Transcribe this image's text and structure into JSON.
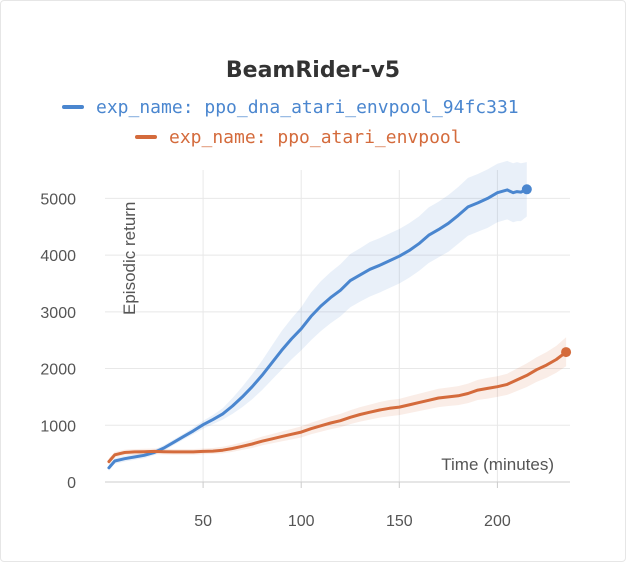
{
  "chart_data": {
    "type": "line",
    "title": "BeamRider-v5",
    "xlabel": "Time (minutes)",
    "ylabel": "Episodic return",
    "xlim": [
      0,
      237
    ],
    "ylim": [
      0,
      5500
    ],
    "xticks": [
      50,
      100,
      150,
      200
    ],
    "yticks": [
      0,
      1000,
      2000,
      3000,
      4000,
      5000
    ],
    "grid": true,
    "legend_position": "top",
    "series": [
      {
        "name": "exp_name: ppo_dna_atari_envpool_94fc331",
        "color": "#4a86cf",
        "x": [
          2,
          5,
          10,
          15,
          20,
          25,
          30,
          35,
          40,
          45,
          50,
          55,
          60,
          65,
          70,
          75,
          80,
          85,
          90,
          95,
          100,
          105,
          110,
          115,
          120,
          125,
          130,
          135,
          140,
          145,
          150,
          155,
          160,
          165,
          170,
          175,
          180,
          185,
          190,
          195,
          200,
          205,
          208,
          210,
          212,
          215
        ],
        "y": [
          250,
          370,
          410,
          440,
          470,
          520,
          600,
          700,
          800,
          900,
          1010,
          1100,
          1200,
          1340,
          1500,
          1680,
          1880,
          2100,
          2320,
          2520,
          2700,
          2920,
          3100,
          3250,
          3380,
          3550,
          3650,
          3750,
          3820,
          3900,
          3980,
          4080,
          4200,
          4350,
          4450,
          4560,
          4700,
          4850,
          4920,
          5000,
          5100,
          5150,
          5100,
          5120,
          5110,
          5160
        ],
        "lower": [
          200,
          320,
          360,
          390,
          420,
          470,
          550,
          650,
          750,
          840,
          940,
          1020,
          1100,
          1200,
          1320,
          1460,
          1620,
          1800,
          1980,
          2160,
          2320,
          2500,
          2660,
          2800,
          2920,
          3080,
          3180,
          3270,
          3340,
          3420,
          3500,
          3600,
          3720,
          3860,
          3960,
          4060,
          4200,
          4340,
          4410,
          4480,
          4580,
          4630,
          4580,
          4600,
          4600,
          4680
        ],
        "upper": [
          300,
          420,
          460,
          490,
          520,
          570,
          650,
          750,
          850,
          960,
          1080,
          1180,
          1300,
          1480,
          1680,
          1900,
          2140,
          2400,
          2660,
          2880,
          3080,
          3340,
          3540,
          3700,
          3840,
          4020,
          4120,
          4230,
          4300,
          4380,
          4460,
          4560,
          4680,
          4840,
          4940,
          5060,
          5200,
          5360,
          5430,
          5510,
          5610,
          5660,
          5620,
          5640,
          5620,
          5640
        ]
      },
      {
        "name": "exp_name: ppo_atari_envpool",
        "color": "#d46b3c",
        "x": [
          2,
          5,
          10,
          15,
          20,
          25,
          30,
          35,
          40,
          45,
          50,
          55,
          60,
          65,
          70,
          75,
          80,
          85,
          90,
          95,
          100,
          105,
          110,
          115,
          120,
          125,
          130,
          135,
          140,
          145,
          150,
          155,
          160,
          165,
          170,
          175,
          180,
          185,
          190,
          195,
          200,
          205,
          210,
          215,
          220,
          225,
          230,
          235
        ],
        "y": [
          360,
          480,
          520,
          530,
          535,
          540,
          535,
          530,
          530,
          530,
          540,
          545,
          560,
          590,
          630,
          670,
          720,
          760,
          800,
          840,
          880,
          940,
          990,
          1040,
          1080,
          1140,
          1190,
          1230,
          1270,
          1300,
          1320,
          1360,
          1400,
          1440,
          1480,
          1500,
          1520,
          1560,
          1620,
          1650,
          1680,
          1720,
          1800,
          1880,
          1980,
          2060,
          2160,
          2290
        ],
        "lower": [
          300,
          430,
          470,
          480,
          485,
          490,
          485,
          480,
          480,
          480,
          490,
          495,
          505,
          530,
          565,
          600,
          645,
          680,
          715,
          750,
          785,
          840,
          885,
          930,
          965,
          1020,
          1065,
          1100,
          1135,
          1160,
          1180,
          1215,
          1250,
          1285,
          1320,
          1340,
          1355,
          1390,
          1445,
          1470,
          1500,
          1535,
          1605,
          1675,
          1765,
          1835,
          1925,
          2040
        ],
        "upper": [
          420,
          530,
          570,
          580,
          585,
          590,
          585,
          580,
          580,
          580,
          590,
          600,
          620,
          655,
          700,
          745,
          800,
          845,
          890,
          935,
          980,
          1045,
          1100,
          1155,
          1200,
          1265,
          1320,
          1365,
          1410,
          1445,
          1465,
          1510,
          1555,
          1600,
          1645,
          1665,
          1690,
          1735,
          1800,
          1835,
          1865,
          1910,
          2000,
          2090,
          2200,
          2290,
          2400,
          2550
        ]
      }
    ]
  }
}
